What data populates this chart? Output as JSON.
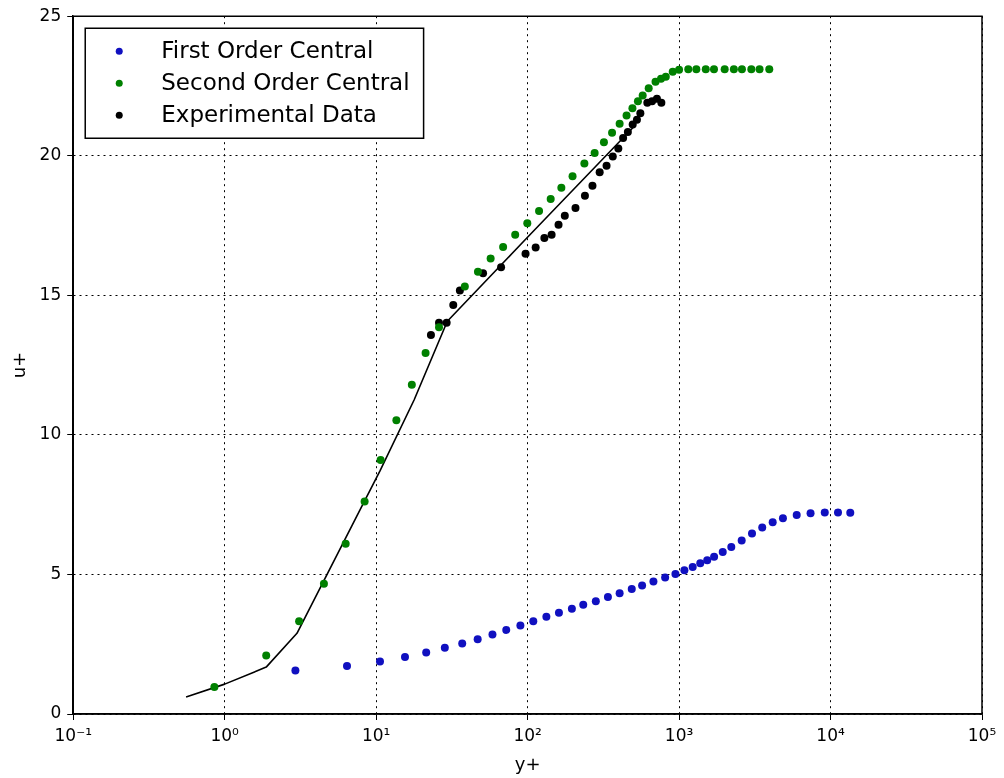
{
  "chart_data": {
    "type": "scatter",
    "xlabel": "y+",
    "ylabel": "u+",
    "log": "x",
    "grid": true,
    "legend": "top left",
    "marker": "circle",
    "xlim": [
      0.1,
      100000
    ],
    "xticks": [
      {
        "value": 0.1,
        "label": "10⁻¹"
      },
      {
        "value": 1,
        "label": "10⁰"
      },
      {
        "value": 10,
        "label": "10¹"
      },
      {
        "value": 100,
        "label": "10²"
      },
      {
        "value": 1000,
        "label": "10³"
      },
      {
        "value": 10000,
        "label": "10⁴"
      },
      {
        "value": 100000,
        "label": "10⁵"
      }
    ],
    "ylim": [
      0,
      25
    ],
    "yticks": [
      0,
      5,
      10,
      15,
      20,
      25
    ],
    "series": [
      {
        "name": "First Order Central",
        "color": "#1010c0",
        "x": [
          2.93,
          6.42,
          10.6,
          15.5,
          21.4,
          28.4,
          37.0,
          46.8,
          58.6,
          72.3,
          89.6,
          109,
          133,
          161,
          196,
          233,
          282,
          339,
          405,
          487,
          570,
          677,
          809,
          946,
          1084,
          1230,
          1380,
          1534,
          1703,
          1942,
          2212,
          2590,
          3030,
          3540,
          4150,
          4850,
          5980,
          7380,
          9160,
          11200,
          13500
        ],
        "values": [
          1.56,
          1.72,
          1.88,
          2.04,
          2.2,
          2.37,
          2.53,
          2.68,
          2.85,
          3.01,
          3.17,
          3.32,
          3.48,
          3.63,
          3.77,
          3.91,
          4.04,
          4.19,
          4.33,
          4.48,
          4.6,
          4.75,
          4.89,
          5.02,
          5.15,
          5.27,
          5.4,
          5.51,
          5.63,
          5.8,
          5.98,
          6.22,
          6.47,
          6.68,
          6.87,
          7.01,
          7.13,
          7.19,
          7.22,
          7.22,
          7.21
        ]
      },
      {
        "name": "Second Order Central",
        "color": "#008000",
        "x": [
          0.855,
          1.88,
          3.1,
          4.52,
          6.29,
          8.39,
          10.7,
          13.6,
          17.2,
          21.2,
          26.0,
          38.5,
          47.0,
          57.0,
          68.9,
          82.8,
          99.5,
          119,
          142,
          167,
          198,
          237,
          277,
          319,
          361,
          405,
          450,
          492,
          535,
          575,
          630,
          699,
          760,
          817,
          908,
          1000,
          1150,
          1300,
          1500,
          1700,
          2000,
          2300,
          2600,
          3000,
          3400,
          3940
        ],
        "values": [
          0.97,
          2.1,
          3.32,
          4.67,
          6.1,
          7.61,
          9.1,
          10.52,
          11.8,
          12.93,
          13.86,
          15.32,
          15.84,
          16.32,
          16.73,
          17.17,
          17.58,
          18.02,
          18.45,
          18.85,
          19.27,
          19.72,
          20.1,
          20.48,
          20.82,
          21.15,
          21.44,
          21.7,
          21.95,
          22.16,
          22.42,
          22.65,
          22.76,
          22.83,
          23.01,
          23.08,
          23.1,
          23.1,
          23.1,
          23.1,
          23.1,
          23.1,
          23.1,
          23.1,
          23.1,
          23.1
        ]
      },
      {
        "name": "Experimental Data",
        "color": "#000000",
        "x": [
          23.0,
          26.0,
          29.2,
          32.3,
          35.7,
          50.8,
          66.8,
          96.9,
          113,
          129,
          144,
          160,
          176,
          207,
          239,
          268,
          299,
          332,
          365,
          397,
          427,
          459,
          494,
          527,
          555,
          617,
          663,
          714,
          764
        ],
        "values": [
          13.58,
          14.02,
          14.02,
          14.65,
          15.17,
          15.79,
          16.01,
          16.49,
          16.71,
          17.05,
          17.17,
          17.53,
          17.85,
          18.13,
          18.57,
          18.93,
          19.41,
          19.64,
          19.97,
          20.26,
          20.64,
          20.85,
          21.12,
          21.29,
          21.52,
          21.9,
          21.95,
          22.04,
          21.9
        ]
      },
      {
        "type": "line",
        "color": "#000000",
        "marker": "none",
        "line_style": "solid",
        "x": [
          0.556,
          1,
          1.88,
          3.0,
          4.57,
          6.95,
          10.6,
          17.8,
          29.5,
          99.5,
          497
        ],
        "values": [
          0.61,
          1.07,
          1.68,
          2.89,
          4.83,
          6.77,
          8.71,
          11.25,
          14.07,
          17.07,
          21.01
        ]
      }
    ]
  }
}
